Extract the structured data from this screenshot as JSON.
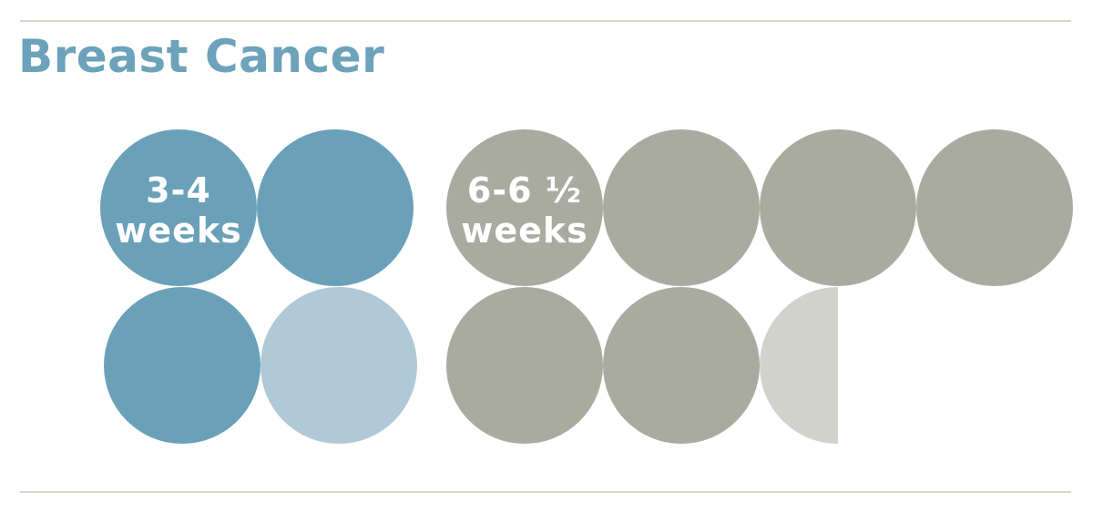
{
  "title": "Breast Cancer",
  "colors": {
    "standard_full": "#6aa1b9",
    "standard_partial": "#b0c9d6",
    "long_full": "#a9aba0",
    "long_partial": "#d1d2cc",
    "rule": "#d6d7cc",
    "title": "#6ca2ba"
  },
  "chart_data": {
    "type": "pictogram",
    "unit": "week",
    "groups": [
      {
        "label": [
          "3-4",
          "weeks"
        ],
        "min_weeks": 3,
        "max_weeks": 4,
        "units": [
          {
            "fill": 1,
            "shade": "full"
          },
          {
            "fill": 1,
            "shade": "full"
          },
          {
            "fill": 1,
            "shade": "full"
          },
          {
            "fill": 1,
            "shade": "partial"
          }
        ]
      },
      {
        "label": [
          "6-6 ½",
          "weeks"
        ],
        "min_weeks": 6,
        "max_weeks": 6.5,
        "units": [
          {
            "fill": 1,
            "shade": "full"
          },
          {
            "fill": 1,
            "shade": "full"
          },
          {
            "fill": 1,
            "shade": "full"
          },
          {
            "fill": 1,
            "shade": "full"
          },
          {
            "fill": 1,
            "shade": "full"
          },
          {
            "fill": 1,
            "shade": "full"
          },
          {
            "fill": 0.5,
            "shade": "partial"
          }
        ]
      }
    ]
  }
}
